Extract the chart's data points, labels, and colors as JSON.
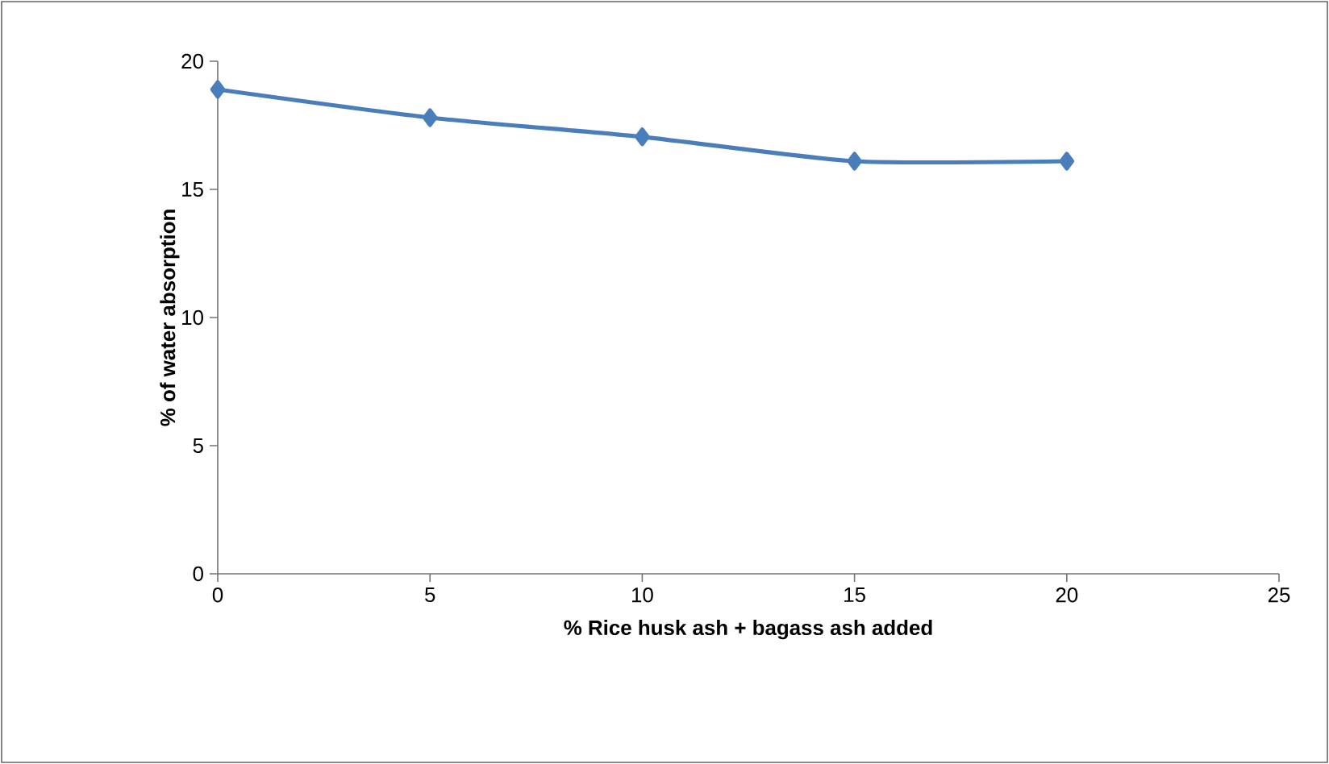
{
  "chart_data": {
    "type": "line",
    "xlabel": "% Rice husk ash + bagass ash added",
    "ylabel": "% of water absorption",
    "x": [
      0,
      5,
      10,
      15,
      20
    ],
    "series": [
      {
        "color": "#4a7ebb",
        "values": [
          18.9,
          17.8,
          17.05,
          16.1,
          16.1
        ]
      }
    ],
    "xlim": [
      0,
      25
    ],
    "xticks": [
      0,
      5,
      10,
      15,
      20,
      25
    ],
    "ylim": [
      0,
      20
    ],
    "yticks": [
      0,
      5,
      10,
      15,
      20
    ],
    "grid": false,
    "marker": "diamond",
    "line_style": "solid"
  }
}
